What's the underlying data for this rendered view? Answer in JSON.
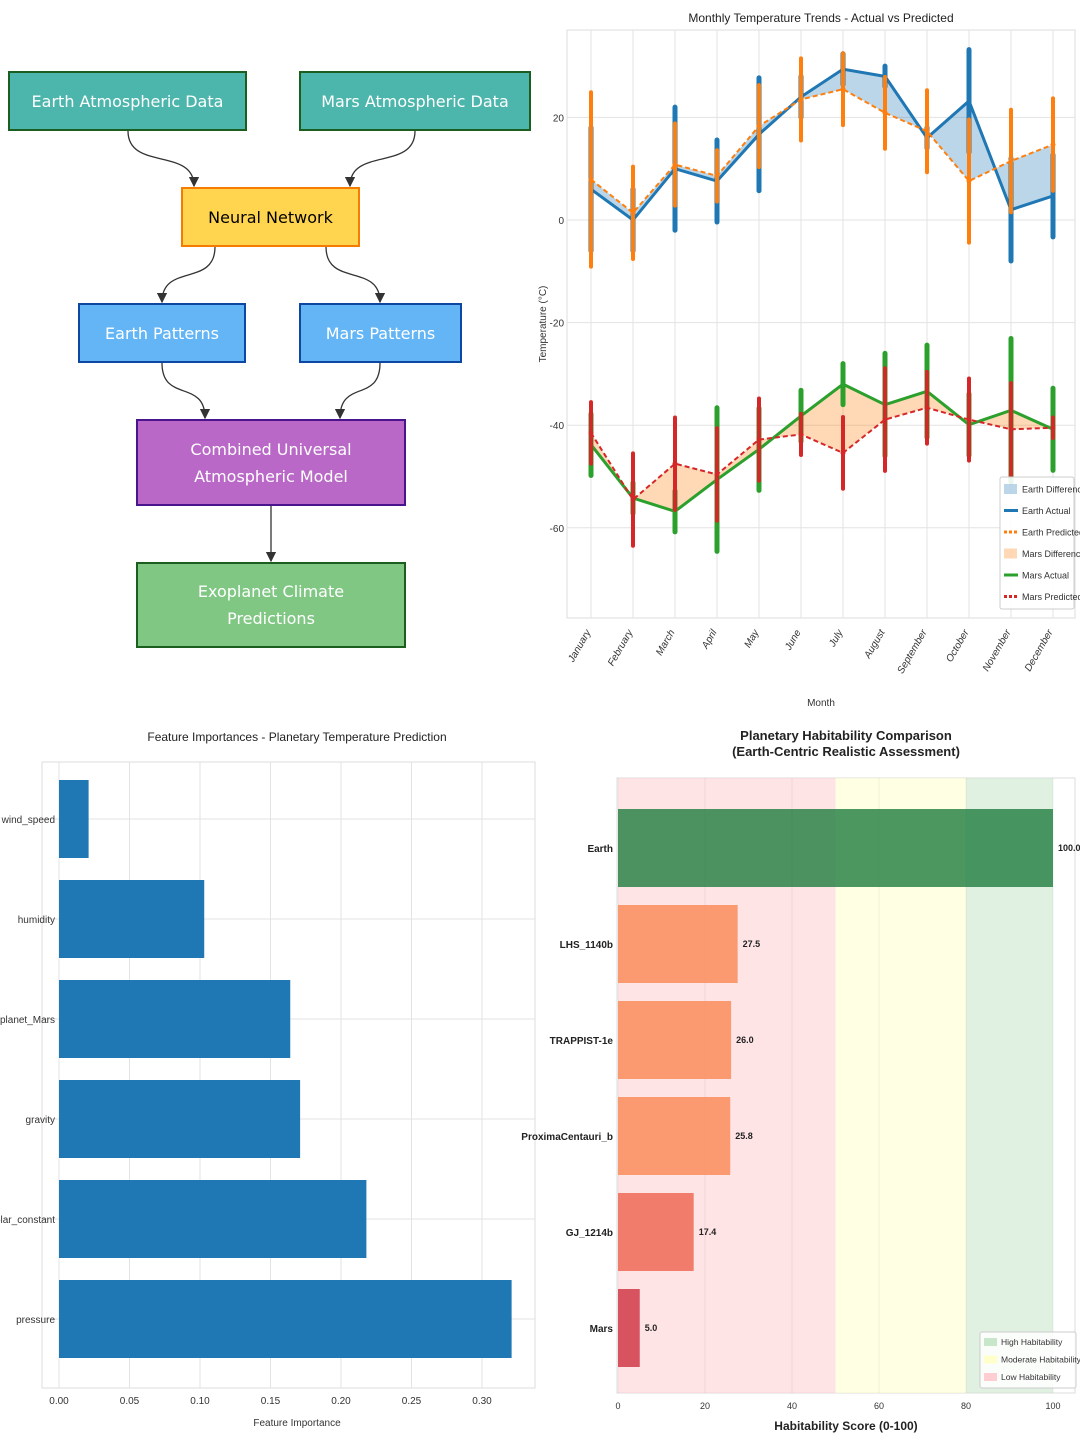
{
  "diagram": {
    "nodes": [
      {
        "id": "earth_data",
        "label": "Earth Atmospheric Data",
        "fill": "#4db6ac",
        "border": "#1b5e20",
        "text": "#ffffff"
      },
      {
        "id": "mars_data",
        "label": "Mars Atmospheric Data",
        "fill": "#4db6ac",
        "border": "#1b5e20",
        "text": "#ffffff"
      },
      {
        "id": "nn",
        "label": "Neural Network",
        "fill": "#ffd54f",
        "border": "#f57c00",
        "text": "#000000"
      },
      {
        "id": "earth_patterns",
        "label": "Earth Patterns",
        "fill": "#64b5f6",
        "border": "#0d47a1",
        "text": "#ffffff"
      },
      {
        "id": "mars_patterns",
        "label": "Mars Patterns",
        "fill": "#64b5f6",
        "border": "#0d47a1",
        "text": "#ffffff"
      },
      {
        "id": "combined",
        "label": "Combined Universal\nAtmospheric Model",
        "fill": "#ba68c8",
        "border": "#4a148c",
        "text": "#ffffff"
      },
      {
        "id": "exoplanet",
        "label": "Exoplanet Climate\nPredictions",
        "fill": "#81c784",
        "border": "#1b5e20",
        "text": "#ffffff"
      }
    ],
    "edges": [
      [
        "earth_data",
        "nn"
      ],
      [
        "mars_data",
        "nn"
      ],
      [
        "nn",
        "earth_patterns"
      ],
      [
        "nn",
        "mars_patterns"
      ],
      [
        "earth_patterns",
        "combined"
      ],
      [
        "mars_patterns",
        "combined"
      ],
      [
        "combined",
        "exoplanet"
      ]
    ]
  },
  "chart_data": [
    {
      "type": "line",
      "title": "Monthly Temperature Trends - Actual vs Predicted",
      "xlabel": "Month",
      "ylabel": "Temperature (°C)",
      "categories": [
        "January",
        "February",
        "March",
        "April",
        "May",
        "June",
        "July",
        "August",
        "September",
        "October",
        "November",
        "December"
      ],
      "yticks": [
        20,
        0,
        -20,
        -40,
        -60
      ],
      "ylim": [
        -77,
        37
      ],
      "grid": true,
      "legend": "bottom-right",
      "series": [
        {
          "name": "Earth Actual",
          "color": "#1f77b4",
          "style": "solid",
          "values": [
            6,
            0,
            10,
            7.6,
            16.7,
            24,
            29.4,
            28,
            16,
            23.2,
            2,
            4.7
          ],
          "errors": [
            12,
            6,
            12,
            8,
            11,
            4,
            3,
            2,
            2,
            10,
            10,
            8
          ]
        },
        {
          "name": "Earth Predicted",
          "color": "#ff7f0e",
          "style": "dashed",
          "values": [
            7.9,
            1.4,
            10.8,
            8.6,
            18.3,
            23.5,
            25.5,
            20.9,
            17.3,
            7.6,
            11.5,
            14.7
          ],
          "errors": [
            17,
            9,
            8,
            5,
            8,
            8,
            7,
            7,
            8,
            12,
            10,
            9
          ]
        },
        {
          "name": "Mars Actual",
          "color": "#2ca02c",
          "style": "solid",
          "values": [
            -43.8,
            -54.2,
            -56.8,
            -50.6,
            -44.7,
            -38.2,
            -32,
            -36,
            -33.4,
            -39.9,
            -37.1,
            -40.8
          ],
          "errors": [
            6,
            3,
            4,
            14,
            8,
            5,
            4,
            10,
            9,
            6,
            14,
            8
          ]
        },
        {
          "name": "Mars Predicted",
          "color": "#d62728",
          "style": "dashed",
          "values": [
            -41.5,
            -54.5,
            -47.5,
            -49.6,
            -42.8,
            -41.8,
            -45.4,
            -38.9,
            -36.6,
            -38.9,
            -40.8,
            -40.5
          ],
          "errors": [
            6,
            9,
            9,
            9,
            8,
            4,
            7,
            10,
            7,
            8,
            9,
            2
          ]
        }
      ],
      "fills": [
        {
          "name": "Earth Difference",
          "color": "#1f77b4",
          "between": [
            "Earth Actual",
            "Earth Predicted"
          ]
        },
        {
          "name": "Mars Difference",
          "color": "#ff7f0e",
          "between": [
            "Mars Actual",
            "Mars Predicted"
          ]
        }
      ],
      "legend_entries": [
        "Earth Difference",
        "Earth Actual",
        "Earth Predicted",
        "Mars Difference",
        "Mars Actual",
        "Mars Predicted"
      ]
    },
    {
      "type": "bar",
      "orientation": "horizontal",
      "title": "Feature Importances - Planetary Temperature Prediction",
      "xlabel": "Feature Importance",
      "ylabel": "",
      "categories": [
        "wind_speed",
        "humidity",
        "planet_Mars",
        "gravity",
        "solar_constant",
        "pressure"
      ],
      "values": [
        0.021,
        0.103,
        0.164,
        0.171,
        0.218,
        0.321
      ],
      "color": "#1f77b4",
      "xticks": [
        "0.00",
        "0.05",
        "0.10",
        "0.15",
        "0.20",
        "0.25",
        "0.30"
      ],
      "xlim": [
        0,
        0.338
      ],
      "grid": true
    },
    {
      "type": "bar",
      "orientation": "horizontal",
      "title": "Planetary Habitability Comparison\n(Earth-Centric Realistic Assessment)",
      "title_lines": [
        "Planetary Habitability Comparison",
        "(Earth-Centric Realistic Assessment)"
      ],
      "xlabel": "Habitability Score (0-100)",
      "categories": [
        "Earth",
        "LHS_1140b",
        "TRAPPIST-1e",
        "ProximaCentauri_b",
        "GJ_1214b",
        "Mars"
      ],
      "values": [
        100.0,
        27.5,
        26.0,
        25.8,
        17.4,
        5.0
      ],
      "labels": [
        "100.0",
        "27.5",
        "26.0",
        "25.8",
        "17.4",
        "5.0"
      ],
      "colors": [
        "#1a7a3a",
        "#fa8c5a",
        "#fa8c5a",
        "#fa8c5a",
        "#ee6a55",
        "#d03a48"
      ],
      "xticks": [
        "0",
        "20",
        "40",
        "60",
        "80",
        "100"
      ],
      "xlim": [
        0,
        105
      ],
      "bands": [
        {
          "name": "High Habitability",
          "range": [
            80,
            100
          ],
          "color": "#c8e6c9"
        },
        {
          "name": "Moderate Habitability",
          "range": [
            50,
            80
          ],
          "color": "#ffffcc"
        },
        {
          "name": "Low Habitability",
          "range": [
            0,
            50
          ],
          "color": "#ffcdd2"
        }
      ],
      "legend": "bottom-right"
    }
  ]
}
